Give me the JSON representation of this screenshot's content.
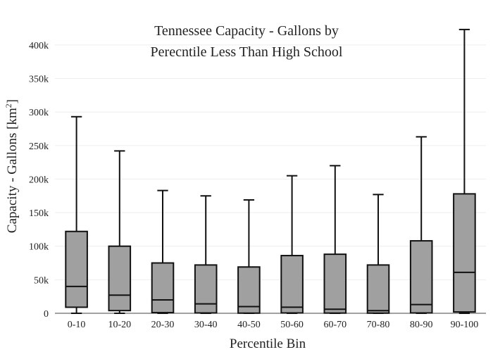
{
  "chart_data": {
    "type": "box",
    "title_lines": [
      "Tennessee Capacity - Gallons by",
      "Perecntile Less Than High School"
    ],
    "xlabel": "Percentile Bin",
    "ylabel_main": "Capacity - Gallons  [km",
    "ylabel_sup": "2",
    "ylabel_close": "]",
    "ylim": [
      0,
      425000
    ],
    "yticks": [
      0,
      50000,
      100000,
      150000,
      200000,
      250000,
      300000,
      350000,
      400000
    ],
    "ytick_labels": [
      "0",
      "50k",
      "100k",
      "150k",
      "200k",
      "250k",
      "300k",
      "350k",
      "400k"
    ],
    "categories": [
      "0-10",
      "10-20",
      "20-30",
      "30-40",
      "40-50",
      "50-60",
      "60-70",
      "70-80",
      "80-90",
      "90-100"
    ],
    "boxes": [
      {
        "min": 0,
        "q1": 9000,
        "median": 40000,
        "q3": 122000,
        "max": 293000
      },
      {
        "min": 0,
        "q1": 4000,
        "median": 27000,
        "q3": 100000,
        "max": 242000
      },
      {
        "min": 0,
        "q1": 1000,
        "median": 20000,
        "q3": 75000,
        "max": 183000
      },
      {
        "min": 0,
        "q1": 500,
        "median": 14000,
        "q3": 72000,
        "max": 175000
      },
      {
        "min": 0,
        "q1": 200,
        "median": 10000,
        "q3": 69000,
        "max": 169000
      },
      {
        "min": 0,
        "q1": 500,
        "median": 9000,
        "q3": 86000,
        "max": 205000
      },
      {
        "min": 0,
        "q1": 300,
        "median": 6000,
        "q3": 88000,
        "max": 220000
      },
      {
        "min": 0,
        "q1": 200,
        "median": 4000,
        "q3": 72000,
        "max": 177000
      },
      {
        "min": 0,
        "q1": 500,
        "median": 13000,
        "q3": 108000,
        "max": 263000
      },
      {
        "min": 0,
        "q1": 2000,
        "median": 61000,
        "q3": 178000,
        "max": 423000
      }
    ],
    "box_fill": "#a0a0a0",
    "box_stroke": "#111111",
    "grid": true,
    "grid_color": "#eeeeee"
  }
}
